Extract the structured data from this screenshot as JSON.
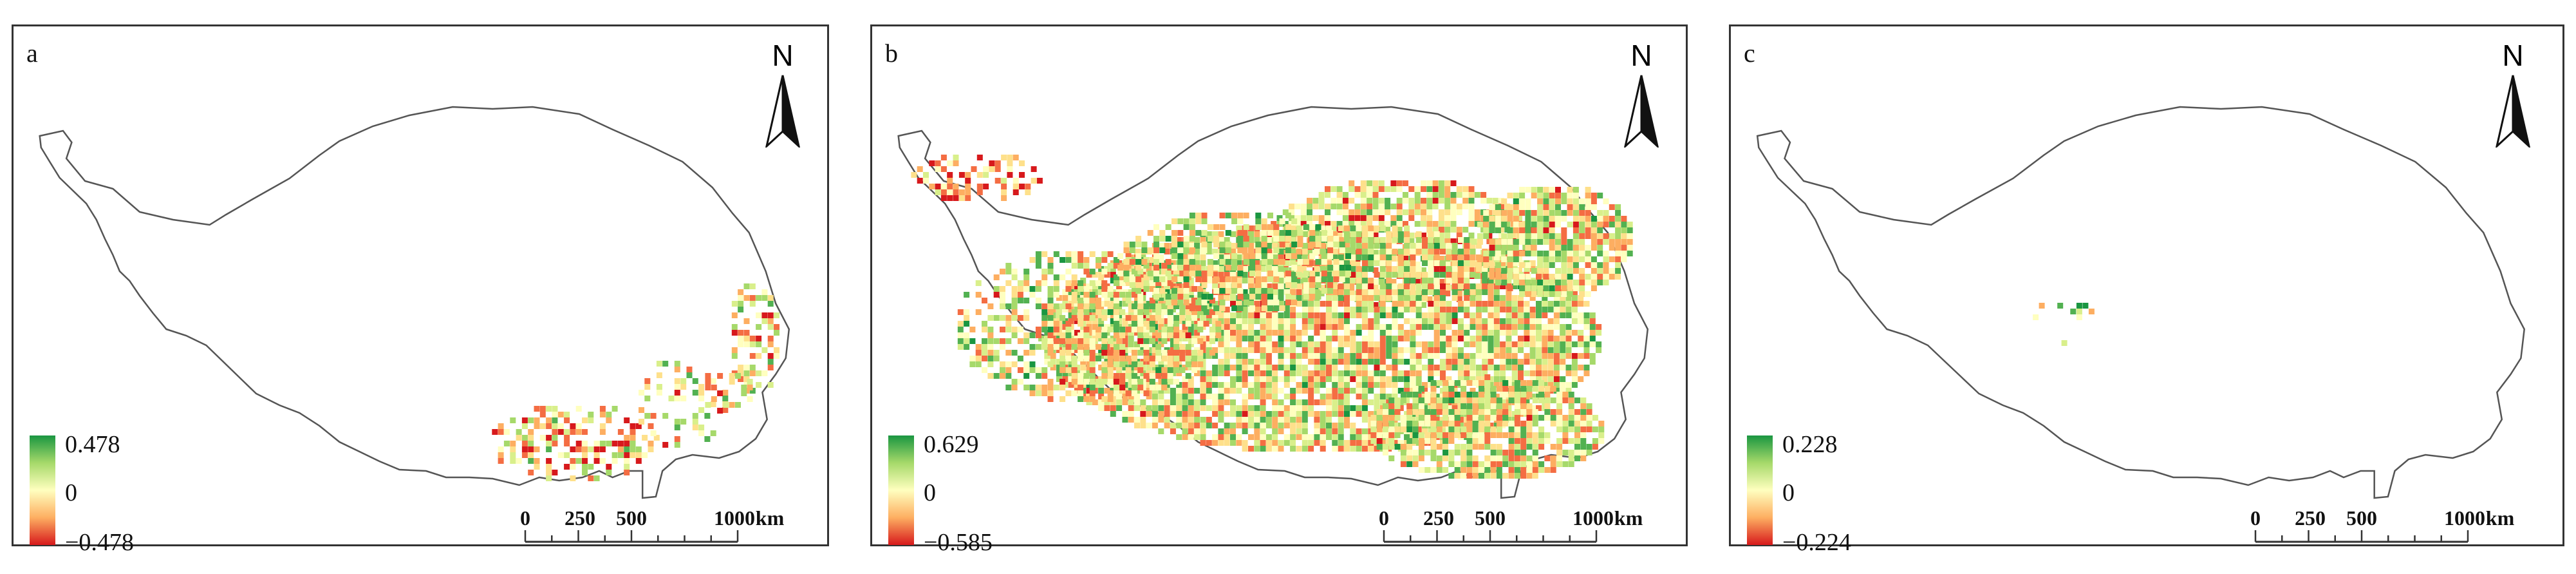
{
  "panels": [
    {
      "label": "a",
      "legend": {
        "max": "0.478",
        "mid": "0",
        "min": "−0.478"
      }
    },
    {
      "label": "b",
      "legend": {
        "max": "0.629",
        "mid": "0",
        "min": "−0.585"
      }
    },
    {
      "label": "c",
      "legend": {
        "max": "0.228",
        "mid": "0",
        "min": "−0.224"
      }
    }
  ],
  "north_arrow": "N",
  "scale_bar": {
    "ticks": [
      "0",
      "250",
      "500",
      "1000"
    ],
    "unit": "km"
  },
  "colors": {
    "positive": "#1a9641",
    "neutral": "#ffffbf",
    "negative": "#d7191c",
    "outline": "#555555"
  },
  "icons": [
    "north-arrow-icon",
    "scale-bar-icon"
  ]
}
